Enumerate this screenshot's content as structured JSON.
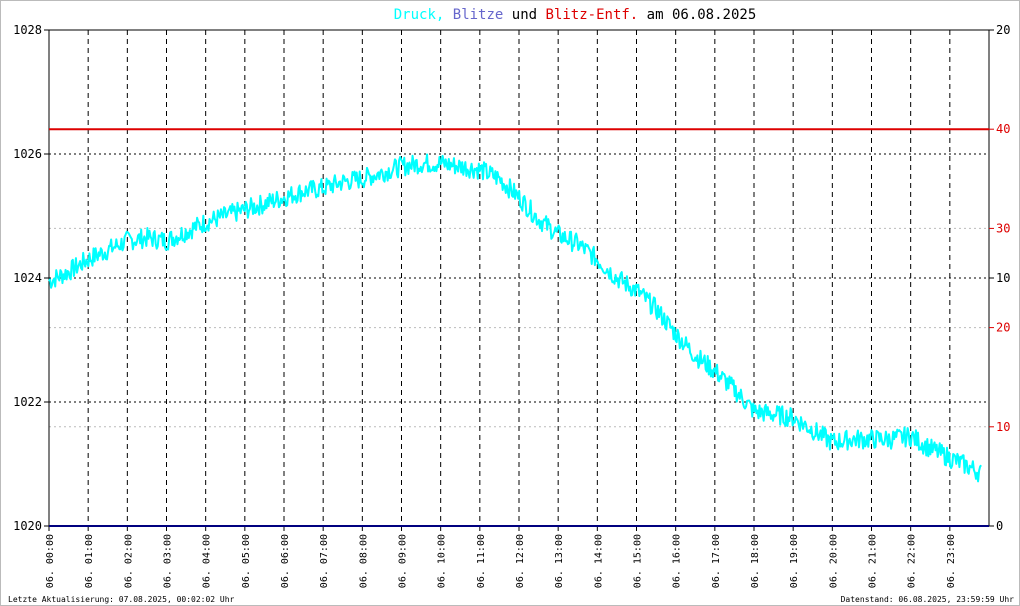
{
  "title": {
    "parts": [
      {
        "text": "Druck,",
        "color": "#00ffff"
      },
      {
        "text": "Blitze",
        "color": "#6666cc"
      },
      {
        "text": "und",
        "color": "#000000"
      },
      {
        "text": "Blitz-Entf.",
        "color": "#dd0000"
      },
      {
        "text": "am 06.08.2025",
        "color": "#000000"
      }
    ]
  },
  "footer": {
    "left": "Letzte Aktualisierung: 07.08.2025, 00:02:02 Uhr",
    "right": "Datenstand: 06.08.2025, 23:59:59 Uhr"
  },
  "colors": {
    "pressure": "#00ffff",
    "lightning": "#00007f",
    "distance": "#dd0000",
    "grid": "#000000",
    "frame": "#000000"
  },
  "chart_data": {
    "type": "line",
    "x_range_hours": [
      0,
      24
    ],
    "x_ticks": [
      "06. 00:00",
      "06. 01:00",
      "06. 02:00",
      "06. 03:00",
      "06. 04:00",
      "06. 05:00",
      "06. 06:00",
      "06. 07:00",
      "06. 08:00",
      "06. 09:00",
      "06. 10:00",
      "06. 11:00",
      "06. 12:00",
      "06. 13:00",
      "06. 14:00",
      "06. 15:00",
      "06. 16:00",
      "06. 17:00",
      "06. 18:00",
      "06. 19:00",
      "06. 20:00",
      "06. 21:00",
      "06. 22:00",
      "06. 23:00"
    ],
    "y_left": {
      "min": 1020,
      "max": 1028,
      "ticks": [
        "1020",
        "1022",
        "1024",
        "1026",
        "1028"
      ]
    },
    "y_right_ticks": [
      {
        "label": "20",
        "color": "#000000",
        "frac": 1.0
      },
      {
        "label": "40",
        "color": "#dd0000",
        "frac": 0.8
      },
      {
        "label": "30",
        "color": "#dd0000",
        "frac": 0.6
      },
      {
        "label": "10",
        "color": "#000000",
        "frac": 0.5
      },
      {
        "label": "20",
        "color": "#dd0000",
        "frac": 0.4
      },
      {
        "label": "10",
        "color": "#dd0000",
        "frac": 0.2
      },
      {
        "label": "0",
        "color": "#000000",
        "frac": 0.0
      }
    ],
    "grid": true,
    "series": [
      {
        "name": "Druck",
        "color": "#00ffff",
        "x": [
          0.0,
          0.5,
          1.0,
          1.5,
          2.0,
          2.5,
          3.0,
          3.5,
          4.0,
          4.5,
          5.0,
          5.5,
          6.0,
          6.5,
          7.0,
          7.5,
          8.0,
          8.5,
          9.0,
          9.5,
          10.0,
          10.5,
          11.0,
          11.5,
          12.0,
          12.5,
          13.0,
          13.5,
          14.0,
          14.5,
          15.0,
          15.5,
          16.0,
          16.5,
          17.0,
          17.5,
          18.0,
          18.5,
          19.0,
          19.5,
          20.0,
          20.5,
          21.0,
          21.5,
          22.0,
          22.5,
          23.0,
          23.5,
          23.8
        ],
        "values": [
          1023.95,
          1024.1,
          1024.3,
          1024.45,
          1024.6,
          1024.65,
          1024.6,
          1024.75,
          1024.9,
          1025.0,
          1025.1,
          1025.2,
          1025.3,
          1025.4,
          1025.45,
          1025.55,
          1025.6,
          1025.7,
          1025.8,
          1025.85,
          1025.85,
          1025.8,
          1025.75,
          1025.6,
          1025.3,
          1024.95,
          1024.7,
          1024.55,
          1024.3,
          1024.0,
          1023.8,
          1023.5,
          1023.1,
          1022.75,
          1022.5,
          1022.2,
          1021.85,
          1021.8,
          1021.75,
          1021.55,
          1021.35,
          1021.4,
          1021.4,
          1021.4,
          1021.45,
          1021.25,
          1021.1,
          1020.95,
          1020.85
        ]
      },
      {
        "name": "Blitz-Entf.",
        "color": "#dd0000",
        "frac": 0.8
      },
      {
        "name": "Blitze",
        "color": "#00007f",
        "frac": 0.0
      }
    ]
  }
}
